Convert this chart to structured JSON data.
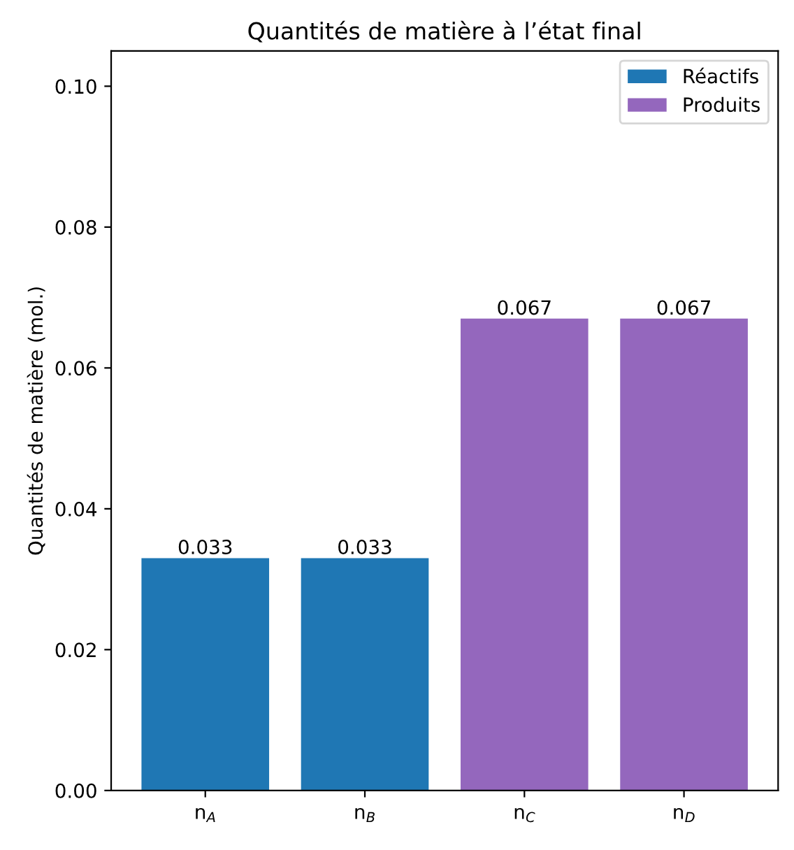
{
  "chart_data": {
    "type": "bar",
    "title": "Quantités de matière à l’état final",
    "ylabel": "Quantités de matière (mol.)",
    "categories": [
      "n$_{A}$",
      "n$_{B}$",
      "n$_{C}$",
      "n$_{D}$"
    ],
    "series": [
      {
        "name": "Réactifs",
        "color": "#1f77b4",
        "values": [
          0.033,
          0.033,
          null,
          null
        ]
      },
      {
        "name": "Produits",
        "color": "#9467bd",
        "values": [
          null,
          null,
          0.067,
          0.067
        ]
      }
    ],
    "data_labels": true,
    "ylim": [
      0,
      0.105
    ],
    "yticks": [
      {
        "value": 0,
        "label": "0.00"
      },
      {
        "value": 0.02,
        "label": "0.02"
      },
      {
        "value": 0.04,
        "label": "0.04"
      },
      {
        "value": 0.06,
        "label": "0.06"
      },
      {
        "value": 0.08,
        "label": "0.08"
      },
      {
        "value": 0.1,
        "label": "0.10"
      }
    ],
    "legend": "top right",
    "grid": false
  }
}
